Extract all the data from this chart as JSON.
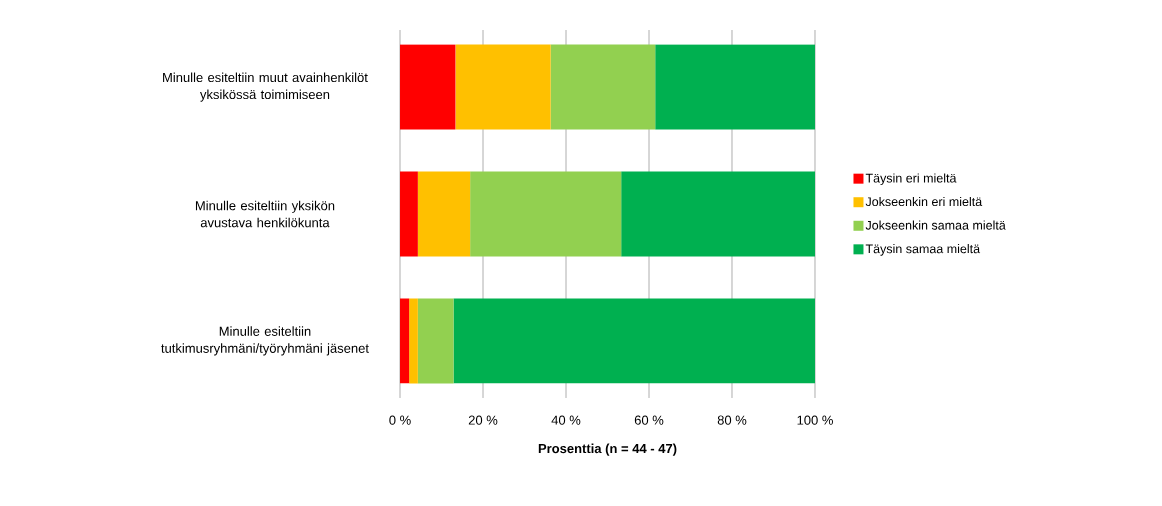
{
  "chart_data": {
    "type": "bar",
    "orientation": "horizontal",
    "stacked": true,
    "categories": [
      "Minulle esiteltiin muut avainhenkilöt yksikössä toimimiseen",
      "Minulle esiteltiin yksikön avustava henkilökunta",
      "Minulle esiteltiin tutkimusryhmäni/työryhmäni jäsenet"
    ],
    "series": [
      {
        "name": "Täysin eri mieltä",
        "color": "#ff0000",
        "values": [
          13.4,
          4.3,
          2.2
        ]
      },
      {
        "name": "Jokseenkin eri mieltä",
        "color": "#ffc000",
        "values": [
          22.9,
          12.6,
          2.1
        ]
      },
      {
        "name": "Jokseenkin samaa mieltä",
        "color": "#92d050",
        "values": [
          25.2,
          36.4,
          8.6
        ]
      },
      {
        "name": "Täysin samaa mieltä",
        "color": "#00b050",
        "values": [
          38.5,
          46.7,
          87.1
        ]
      }
    ],
    "xlim": [
      0,
      100
    ],
    "xticks": [
      {
        "value": 0,
        "label": "0 %"
      },
      {
        "value": 20,
        "label": "20 %"
      },
      {
        "value": 40,
        "label": "40 %"
      },
      {
        "value": 60,
        "label": "60 %"
      },
      {
        "value": 80,
        "label": "80 %"
      },
      {
        "value": 100,
        "label": "100 %"
      }
    ],
    "xlabel": "Prosenttia (n = 44 - 47)",
    "grid": "x",
    "legend": "right"
  }
}
